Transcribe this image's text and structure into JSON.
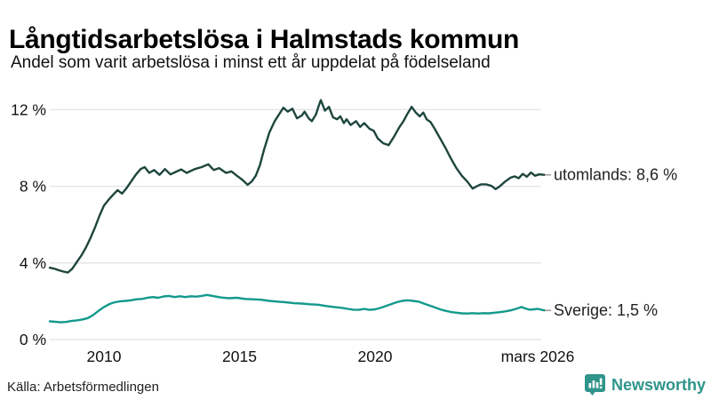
{
  "header": {
    "title": "Långtidsarbetslösa i Halmstads kommun",
    "subtitle": "Andel som varit arbetslösa i minst ett år uppdelat på födelseland"
  },
  "footer": {
    "source": "Källa: Arbetsförmedlingen",
    "brand": "Newsworthy",
    "brand_icon": "newsworthy-chart-bubble-icon"
  },
  "colors": {
    "utomlands_line": "#1e463d",
    "sverige_line": "#12998c",
    "grid": "#e2e2e8",
    "tick_text": "#111111",
    "annotation_text": "#222222",
    "annotation_dash": "#999999",
    "brand_teal": "#2f948a"
  },
  "chart_data": {
    "type": "line",
    "title": "Långtidsarbetslösa i Halmstads kommun",
    "subtitle": "Andel som varit arbetslösa i minst ett år uppdelat på födelseland",
    "source": "Källa: Arbetsförmedlingen",
    "x_unit": "decimal_year",
    "y_unit": "percent",
    "x_range": [
      2008.0,
      2026.25
    ],
    "y_range": [
      0,
      13
    ],
    "grid": "horizontal-only",
    "legend_position": "line-end-labels-right",
    "yticks": [
      {
        "value": 12,
        "label": "12 %"
      },
      {
        "value": 8,
        "label": "8 %"
      },
      {
        "value": 4,
        "label": "4 %"
      },
      {
        "value": 0,
        "label": "0 %"
      }
    ],
    "xticks": [
      {
        "value": 2010,
        "label": "2010"
      },
      {
        "value": 2015,
        "label": "2015"
      },
      {
        "value": 2020,
        "label": "2020"
      },
      {
        "value": 2026,
        "label": "mars 2026"
      }
    ],
    "series": [
      {
        "name": "utomlands",
        "color": "#1e463d",
        "end_label": "utomlands: 8,6 %",
        "end_value": 8.6,
        "points": [
          [
            2008.0,
            3.75
          ],
          [
            2008.17,
            3.7
          ],
          [
            2008.33,
            3.62
          ],
          [
            2008.5,
            3.55
          ],
          [
            2008.67,
            3.5
          ],
          [
            2008.83,
            3.7
          ],
          [
            2009.0,
            4.05
          ],
          [
            2009.17,
            4.4
          ],
          [
            2009.33,
            4.8
          ],
          [
            2009.5,
            5.3
          ],
          [
            2009.67,
            5.85
          ],
          [
            2009.83,
            6.45
          ],
          [
            2010.0,
            7.0
          ],
          [
            2010.17,
            7.3
          ],
          [
            2010.33,
            7.55
          ],
          [
            2010.5,
            7.8
          ],
          [
            2010.67,
            7.62
          ],
          [
            2010.83,
            7.9
          ],
          [
            2011.0,
            8.25
          ],
          [
            2011.17,
            8.6
          ],
          [
            2011.35,
            8.9
          ],
          [
            2011.5,
            9.0
          ],
          [
            2011.67,
            8.7
          ],
          [
            2011.85,
            8.85
          ],
          [
            2012.05,
            8.6
          ],
          [
            2012.25,
            8.9
          ],
          [
            2012.45,
            8.62
          ],
          [
            2012.65,
            8.75
          ],
          [
            2012.85,
            8.88
          ],
          [
            2013.05,
            8.7
          ],
          [
            2013.35,
            8.9
          ],
          [
            2013.6,
            9.0
          ],
          [
            2013.85,
            9.15
          ],
          [
            2014.05,
            8.85
          ],
          [
            2014.25,
            8.95
          ],
          [
            2014.5,
            8.7
          ],
          [
            2014.7,
            8.78
          ],
          [
            2014.9,
            8.55
          ],
          [
            2015.1,
            8.35
          ],
          [
            2015.3,
            8.08
          ],
          [
            2015.45,
            8.25
          ],
          [
            2015.6,
            8.55
          ],
          [
            2015.75,
            9.1
          ],
          [
            2015.9,
            9.9
          ],
          [
            2016.1,
            10.8
          ],
          [
            2016.3,
            11.4
          ],
          [
            2016.5,
            11.85
          ],
          [
            2016.62,
            12.1
          ],
          [
            2016.78,
            11.9
          ],
          [
            2016.95,
            12.05
          ],
          [
            2017.12,
            11.55
          ],
          [
            2017.3,
            11.7
          ],
          [
            2017.4,
            11.9
          ],
          [
            2017.55,
            11.55
          ],
          [
            2017.67,
            11.4
          ],
          [
            2017.82,
            11.75
          ],
          [
            2017.92,
            12.2
          ],
          [
            2018.0,
            12.5
          ],
          [
            2018.15,
            11.95
          ],
          [
            2018.3,
            12.15
          ],
          [
            2018.45,
            11.6
          ],
          [
            2018.6,
            11.5
          ],
          [
            2018.72,
            11.65
          ],
          [
            2018.85,
            11.3
          ],
          [
            2018.95,
            11.5
          ],
          [
            2019.1,
            11.2
          ],
          [
            2019.3,
            11.4
          ],
          [
            2019.45,
            11.1
          ],
          [
            2019.6,
            11.3
          ],
          [
            2019.8,
            11.0
          ],
          [
            2019.95,
            10.9
          ],
          [
            2020.1,
            10.5
          ],
          [
            2020.3,
            10.25
          ],
          [
            2020.5,
            10.15
          ],
          [
            2020.7,
            10.6
          ],
          [
            2020.9,
            11.1
          ],
          [
            2021.05,
            11.4
          ],
          [
            2021.2,
            11.8
          ],
          [
            2021.35,
            12.15
          ],
          [
            2021.5,
            11.85
          ],
          [
            2021.65,
            11.65
          ],
          [
            2021.78,
            11.85
          ],
          [
            2021.9,
            11.5
          ],
          [
            2022.05,
            11.35
          ],
          [
            2022.2,
            11.0
          ],
          [
            2022.4,
            10.5
          ],
          [
            2022.6,
            10.0
          ],
          [
            2022.8,
            9.45
          ],
          [
            2023.0,
            8.95
          ],
          [
            2023.2,
            8.55
          ],
          [
            2023.4,
            8.25
          ],
          [
            2023.6,
            7.88
          ],
          [
            2023.75,
            8.0
          ],
          [
            2023.9,
            8.1
          ],
          [
            2024.1,
            8.1
          ],
          [
            2024.3,
            8.02
          ],
          [
            2024.45,
            7.85
          ],
          [
            2024.6,
            8.0
          ],
          [
            2024.8,
            8.25
          ],
          [
            2025.0,
            8.45
          ],
          [
            2025.15,
            8.52
          ],
          [
            2025.3,
            8.42
          ],
          [
            2025.45,
            8.65
          ],
          [
            2025.6,
            8.5
          ],
          [
            2025.75,
            8.72
          ],
          [
            2025.9,
            8.55
          ],
          [
            2026.05,
            8.62
          ],
          [
            2026.25,
            8.6
          ]
        ]
      },
      {
        "name": "Sverige",
        "color": "#12998c",
        "end_label": "Sverige: 1,5 %",
        "end_value": 1.52,
        "points": [
          [
            2008.0,
            0.95
          ],
          [
            2008.2,
            0.93
          ],
          [
            2008.4,
            0.9
          ],
          [
            2008.6,
            0.92
          ],
          [
            2008.8,
            0.97
          ],
          [
            2009.0,
            1.0
          ],
          [
            2009.2,
            1.05
          ],
          [
            2009.4,
            1.12
          ],
          [
            2009.6,
            1.28
          ],
          [
            2009.8,
            1.5
          ],
          [
            2010.0,
            1.7
          ],
          [
            2010.2,
            1.85
          ],
          [
            2010.4,
            1.95
          ],
          [
            2010.6,
            2.0
          ],
          [
            2010.8,
            2.02
          ],
          [
            2011.0,
            2.05
          ],
          [
            2011.2,
            2.1
          ],
          [
            2011.4,
            2.12
          ],
          [
            2011.6,
            2.18
          ],
          [
            2011.8,
            2.22
          ],
          [
            2012.0,
            2.18
          ],
          [
            2012.2,
            2.25
          ],
          [
            2012.4,
            2.28
          ],
          [
            2012.6,
            2.22
          ],
          [
            2012.8,
            2.26
          ],
          [
            2013.0,
            2.22
          ],
          [
            2013.2,
            2.26
          ],
          [
            2013.4,
            2.24
          ],
          [
            2013.6,
            2.28
          ],
          [
            2013.8,
            2.33
          ],
          [
            2014.0,
            2.28
          ],
          [
            2014.3,
            2.2
          ],
          [
            2014.6,
            2.16
          ],
          [
            2014.9,
            2.18
          ],
          [
            2015.2,
            2.12
          ],
          [
            2015.5,
            2.1
          ],
          [
            2015.8,
            2.08
          ],
          [
            2016.1,
            2.02
          ],
          [
            2016.4,
            1.98
          ],
          [
            2016.7,
            1.95
          ],
          [
            2017.0,
            1.9
          ],
          [
            2017.3,
            1.88
          ],
          [
            2017.6,
            1.84
          ],
          [
            2017.9,
            1.82
          ],
          [
            2018.2,
            1.75
          ],
          [
            2018.5,
            1.7
          ],
          [
            2018.8,
            1.65
          ],
          [
            2019.0,
            1.6
          ],
          [
            2019.2,
            1.56
          ],
          [
            2019.4,
            1.55
          ],
          [
            2019.6,
            1.6
          ],
          [
            2019.8,
            1.55
          ],
          [
            2020.0,
            1.58
          ],
          [
            2020.2,
            1.65
          ],
          [
            2020.4,
            1.75
          ],
          [
            2020.6,
            1.85
          ],
          [
            2020.8,
            1.95
          ],
          [
            2021.0,
            2.02
          ],
          [
            2021.2,
            2.05
          ],
          [
            2021.4,
            2.02
          ],
          [
            2021.6,
            1.98
          ],
          [
            2021.8,
            1.88
          ],
          [
            2022.0,
            1.78
          ],
          [
            2022.2,
            1.68
          ],
          [
            2022.4,
            1.58
          ],
          [
            2022.6,
            1.5
          ],
          [
            2022.8,
            1.44
          ],
          [
            2023.0,
            1.4
          ],
          [
            2023.2,
            1.37
          ],
          [
            2023.4,
            1.36
          ],
          [
            2023.6,
            1.38
          ],
          [
            2023.8,
            1.36
          ],
          [
            2024.0,
            1.38
          ],
          [
            2024.2,
            1.37
          ],
          [
            2024.4,
            1.4
          ],
          [
            2024.6,
            1.43
          ],
          [
            2024.8,
            1.47
          ],
          [
            2025.0,
            1.52
          ],
          [
            2025.2,
            1.6
          ],
          [
            2025.4,
            1.7
          ],
          [
            2025.55,
            1.62
          ],
          [
            2025.7,
            1.56
          ],
          [
            2025.85,
            1.58
          ],
          [
            2026.0,
            1.6
          ],
          [
            2026.25,
            1.52
          ]
        ]
      }
    ]
  }
}
